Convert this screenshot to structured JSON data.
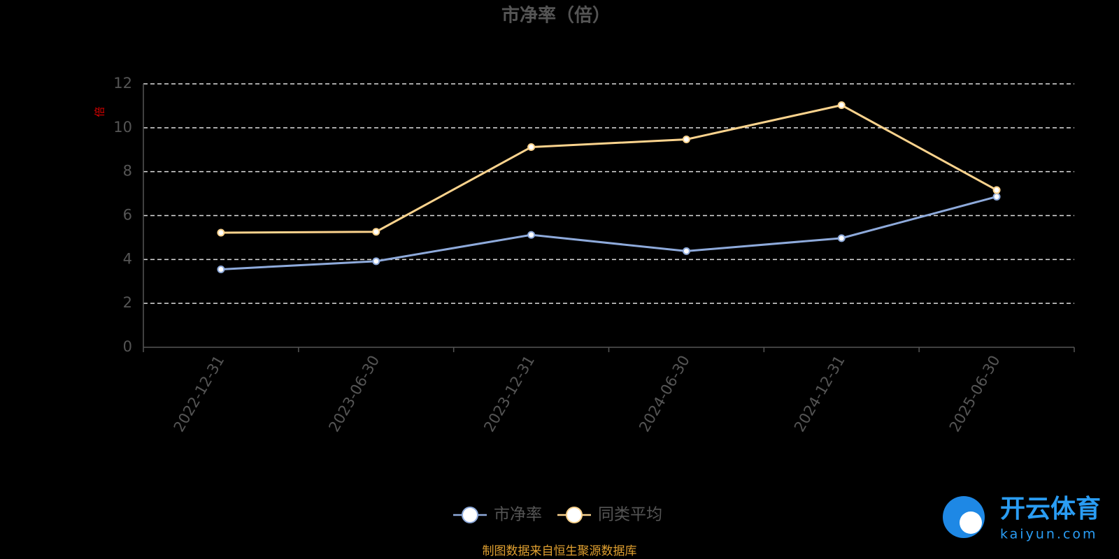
{
  "chart_data": {
    "type": "line",
    "title": "市净率（倍）",
    "y_label": "倍",
    "categories": [
      "2022-12-31",
      "2023-06-30",
      "2023-12-31",
      "2024-06-30",
      "2024-12-31",
      "2025-06-30"
    ],
    "series": [
      {
        "name": "市净率",
        "color": "#8eaadb",
        "values": [
          3.55,
          3.92,
          5.12,
          4.38,
          4.97,
          6.86
        ]
      },
      {
        "name": "同类平均",
        "color": "#fbd38d",
        "values": [
          5.22,
          5.26,
          9.12,
          9.47,
          11.03,
          7.16
        ]
      }
    ],
    "ylim": [
      0,
      12
    ],
    "yticks": [
      0,
      2,
      4,
      6,
      8,
      10,
      12
    ],
    "grid": true,
    "source": "制图数据来自恒生聚源数据库",
    "watermark": {
      "name": "开云体育",
      "url": "kaiyun.com"
    }
  }
}
